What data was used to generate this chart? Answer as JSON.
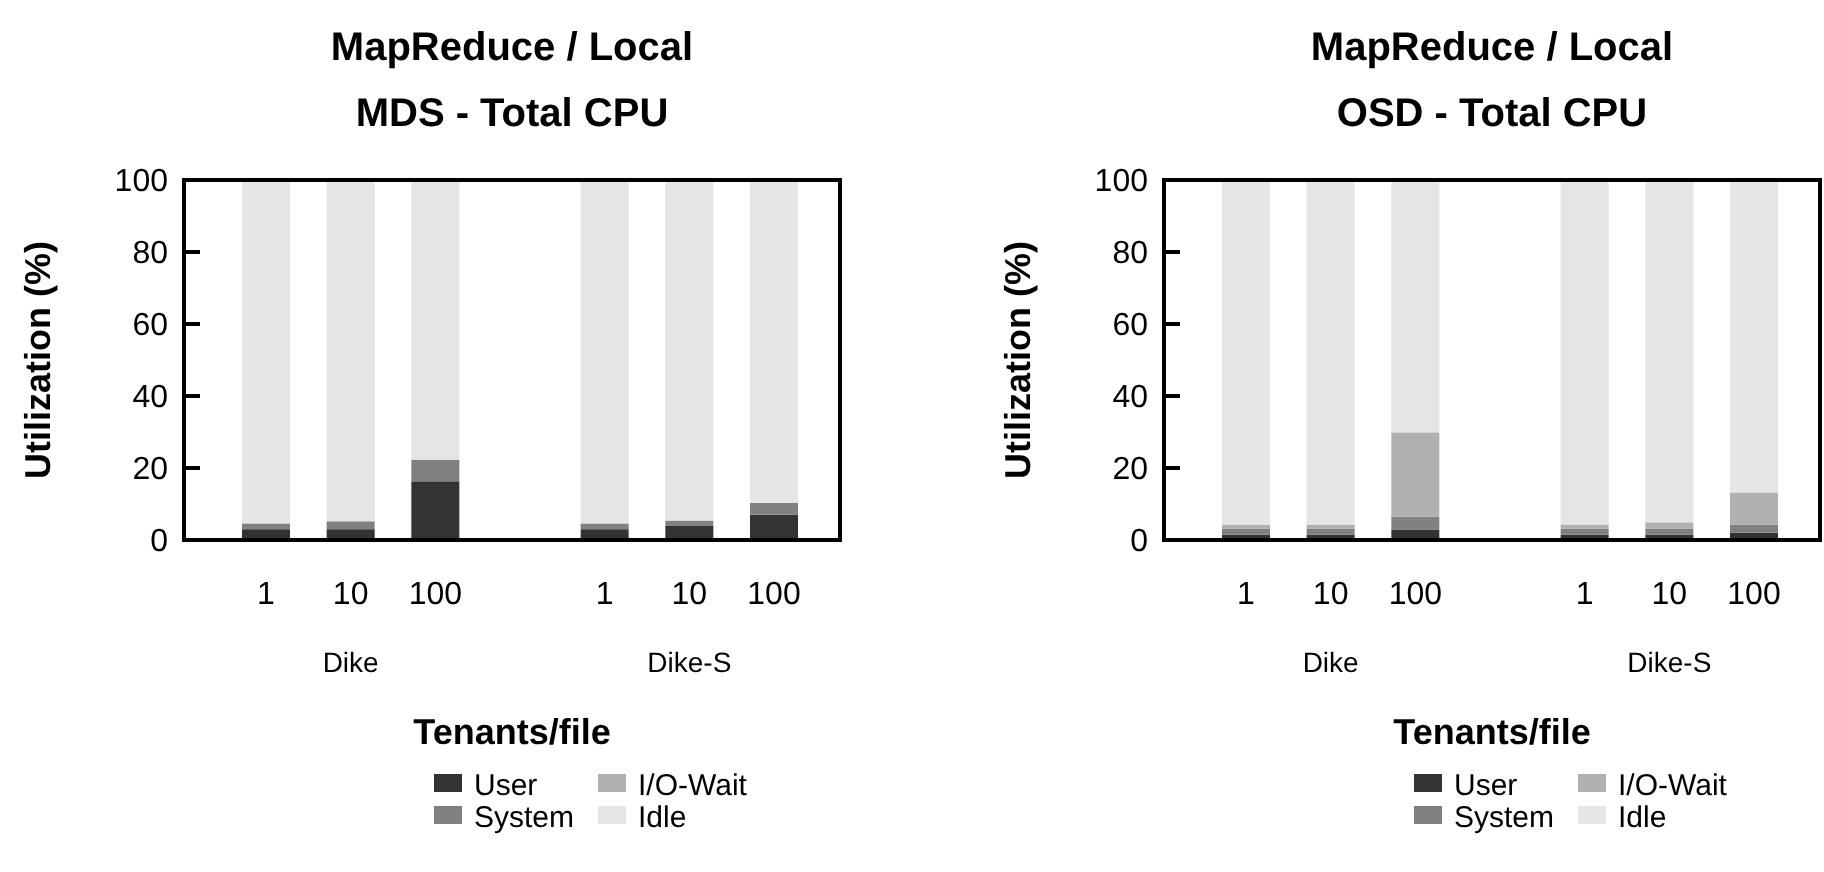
{
  "chart_data": [
    {
      "type": "bar",
      "stacked": true,
      "title": "MapReduce / Local\nMDS - Total CPU",
      "xlabel": "Tenants/file",
      "ylabel": "Utilization (%)",
      "categories": [
        "1",
        "10",
        "100",
        "1",
        "10",
        "100"
      ],
      "annotations": [
        "Dike",
        "Dike-S"
      ],
      "ylim": [
        0,
        100
      ],
      "yticks": [
        0,
        20,
        40,
        60,
        80,
        100
      ],
      "legend": "bottom",
      "series": [
        {
          "name": "User",
          "color": "#333333",
          "values": [
            3,
            3,
            16.3,
            3,
            3.9,
            7
          ]
        },
        {
          "name": "System",
          "color": "#808080",
          "values": [
            1.6,
            2.2,
            6,
            1.6,
            1.5,
            3.3
          ]
        },
        {
          "name": "I/O-Wait",
          "color": "#b0b0b0",
          "values": [
            0,
            0,
            0,
            0,
            0,
            0
          ]
        },
        {
          "name": "Idle",
          "color": "#e5e5e5",
          "values": [
            95.4,
            94.8,
            77.7,
            95.4,
            94.6,
            89.7
          ]
        }
      ]
    },
    {
      "type": "bar",
      "stacked": true,
      "title": "MapReduce / Local\nOSD - Total CPU",
      "xlabel": "Tenants/file",
      "ylabel": "Utilization (%)",
      "categories": [
        "1",
        "10",
        "100",
        "1",
        "10",
        "100"
      ],
      "annotations": [
        "Dike",
        "Dike-S"
      ],
      "ylim": [
        0,
        100
      ],
      "yticks": [
        0,
        20,
        40,
        60,
        80,
        100
      ],
      "legend": "bottom",
      "series": [
        {
          "name": "User",
          "color": "#333333",
          "values": [
            1.5,
            1.5,
            2.8,
            1.5,
            1.5,
            2
          ]
        },
        {
          "name": "System",
          "color": "#808080",
          "values": [
            1.7,
            1.7,
            3.7,
            1.7,
            1.7,
            2.2
          ]
        },
        {
          "name": "I/O-Wait",
          "color": "#b0b0b0",
          "values": [
            1.1,
            1.1,
            23.4,
            1.1,
            1.7,
            9
          ]
        },
        {
          "name": "Idle",
          "color": "#e5e5e5",
          "values": [
            95.7,
            95.7,
            70.1,
            95.7,
            95.1,
            86.8
          ]
        }
      ]
    }
  ]
}
